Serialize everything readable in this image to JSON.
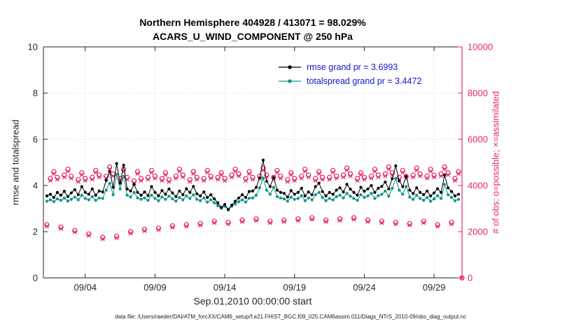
{
  "figure": {
    "title_line1": "Northern Hemisphere 404928 / 413071 = 98.029%",
    "title_line2": "ACARS_U_WIND_COMPONENT @ 250 hPa",
    "xlabel": "Sep.01,2010 00:00:00 start",
    "ylabel_left": "rmse and totalspread",
    "ylabel_right": "# of obs: o=possible; ×=assimilated",
    "footer": "data file: /Users/raeder/DAI/ATM_forcXX/CAM6_setup/f.e21.FHIST_BGC.f09_025.CAM6assim.011/Diags_NTrS_2010-09/obs_diag_output.nc"
  },
  "legend": {
    "text_color": "#1515d0",
    "items": [
      {
        "label": "rmse grand pr = 3.6993",
        "color": "#000000"
      },
      {
        "label": "totalspread grand pr = 3.4472",
        "color": "#0e9488"
      }
    ]
  },
  "chart_data": {
    "type": "line",
    "title": "Northern Hemisphere 404928 / 413071 = 98.029% | ACARS_U_WIND_COMPONENT @ 250 hPa",
    "grid": true,
    "x_axis": {
      "label": "Sep.01,2010 00:00:00 start",
      "range_days": [
        1,
        31
      ],
      "ticks": [
        {
          "day": 4,
          "label": "09/04"
        },
        {
          "day": 9,
          "label": "09/09"
        },
        {
          "day": 14,
          "label": "09/14"
        },
        {
          "day": 19,
          "label": "09/19"
        },
        {
          "day": 24,
          "label": "09/24"
        },
        {
          "day": 29,
          "label": "09/29"
        }
      ]
    },
    "y_axis_left": {
      "label": "rmse and totalspread",
      "range": [
        0,
        10
      ],
      "ticks": [
        0,
        2,
        4,
        6,
        8,
        10
      ],
      "color": "#262626"
    },
    "y_axis_right": {
      "label": "# of obs: o=possible; ×=assimilated",
      "range": [
        0,
        10000
      ],
      "ticks": [
        0,
        2000,
        4000,
        6000,
        8000,
        10000
      ],
      "color": "#e8256d"
    },
    "series": [
      {
        "name": "rmse",
        "color": "#000000",
        "grand_pr": 3.6993,
        "t_start": 1.25,
        "t_step": 0.25,
        "values": [
          3.55,
          3.62,
          3.48,
          3.7,
          3.58,
          3.75,
          3.52,
          3.68,
          3.82,
          3.6,
          3.95,
          3.7,
          3.62,
          3.85,
          3.58,
          3.76,
          3.72,
          4.22,
          4.6,
          3.92,
          4.95,
          4.1,
          4.88,
          3.85,
          3.76,
          4.05,
          3.7,
          3.58,
          3.72,
          3.56,
          3.95,
          3.7,
          3.55,
          3.78,
          3.62,
          3.85,
          3.68,
          3.52,
          3.76,
          3.6,
          3.86,
          3.7,
          3.96,
          3.64,
          3.55,
          3.72,
          3.48,
          3.6,
          3.42,
          3.25,
          3.05,
          3.18,
          2.95,
          3.15,
          3.32,
          3.46,
          3.6,
          3.48,
          3.74,
          3.76,
          3.92,
          4.32,
          5.1,
          4.18,
          3.95,
          4.35,
          3.8,
          3.7,
          3.66,
          3.5,
          3.78,
          3.62,
          3.7,
          3.88,
          3.55,
          3.72,
          3.6,
          3.95,
          4.1,
          3.74,
          3.55,
          3.7,
          3.62,
          3.8,
          3.9,
          3.72,
          4.05,
          3.84,
          3.7,
          3.58,
          3.92,
          3.75,
          3.85,
          4.0,
          3.7,
          3.88,
          3.96,
          4.15,
          3.85,
          4.3,
          4.85,
          4.2,
          3.95,
          4.4,
          3.8,
          3.65,
          3.9,
          3.7,
          3.6,
          3.76,
          3.55,
          3.68,
          3.86,
          3.7,
          4.45,
          3.9,
          3.74,
          3.55,
          3.62
        ]
      },
      {
        "name": "totalspread",
        "color": "#0e9488",
        "grand_pr": 3.4472,
        "t_start": 1.25,
        "t_step": 0.25,
        "values": [
          3.32,
          3.38,
          3.3,
          3.42,
          3.36,
          3.45,
          3.33,
          3.4,
          3.5,
          3.38,
          3.58,
          3.44,
          3.38,
          3.52,
          3.36,
          3.46,
          3.44,
          3.8,
          4.1,
          3.6,
          4.48,
          3.85,
          4.4,
          3.58,
          3.5,
          3.7,
          3.46,
          3.4,
          3.46,
          3.36,
          3.58,
          3.44,
          3.34,
          3.5,
          3.4,
          3.54,
          3.42,
          3.32,
          3.48,
          3.38,
          3.55,
          3.44,
          3.6,
          3.4,
          3.34,
          3.46,
          3.28,
          3.38,
          3.25,
          3.12,
          3.02,
          3.1,
          2.98,
          3.1,
          3.2,
          3.3,
          3.38,
          3.28,
          3.45,
          3.46,
          3.58,
          3.9,
          4.32,
          3.8,
          3.62,
          3.92,
          3.52,
          3.46,
          3.42,
          3.32,
          3.5,
          3.4,
          3.44,
          3.56,
          3.34,
          3.46,
          3.38,
          3.6,
          3.7,
          3.48,
          3.34,
          3.44,
          3.38,
          3.52,
          3.58,
          3.46,
          3.66,
          3.54,
          3.44,
          3.36,
          3.6,
          3.48,
          3.55,
          3.66,
          3.44,
          3.56,
          3.62,
          3.76,
          3.54,
          3.88,
          4.3,
          3.8,
          3.62,
          3.96,
          3.5,
          3.4,
          3.58,
          3.44,
          3.36,
          3.48,
          3.32,
          3.42,
          3.56,
          3.44,
          4.05,
          3.6,
          3.48,
          3.34,
          3.4
        ]
      }
    ],
    "scatter": [
      {
        "name": "obs_possible",
        "marker": "circle",
        "color": "#e8256d",
        "t_start": 1.25,
        "t_step": 0.25,
        "values": [
          2300,
          4300,
          4600,
          4350,
          2200,
          4450,
          4700,
          4400,
          2050,
          4250,
          4550,
          4300,
          1900,
          4350,
          4650,
          4450,
          1750,
          4400,
          4800,
          4500,
          1800,
          4300,
          4700,
          4350,
          2000,
          4200,
          4600,
          4300,
          2100,
          4350,
          4650,
          4400,
          2150,
          4300,
          4550,
          4250,
          2250,
          4400,
          4700,
          4450,
          2300,
          4250,
          4600,
          4350,
          2350,
          4300,
          4650,
          4400,
          2450,
          4350,
          4550,
          4300,
          2400,
          4450,
          4700,
          4500,
          2500,
          4300,
          4600,
          4350,
          2550,
          4400,
          4750,
          4450,
          2450,
          4350,
          4650,
          4400,
          2500,
          4250,
          4550,
          4300,
          2550,
          4400,
          4700,
          4450,
          2600,
          4300,
          4600,
          4350,
          2500,
          4350,
          4650,
          4400,
          2550,
          4450,
          4750,
          4500,
          2600,
          4300,
          4550,
          4350,
          2500,
          4400,
          4700,
          4450,
          2450,
          4500,
          4800,
          4550,
          2400,
          4350,
          4650,
          4400,
          2350,
          4450,
          4750,
          4500,
          2450,
          4400,
          4700,
          4450,
          2300,
          4500,
          4800,
          4550,
          2400,
          4300,
          4600,
          0
        ]
      },
      {
        "name": "obs_assimilated",
        "marker": "x",
        "color": "#e8256d",
        "t_start": 1.25,
        "t_step": 0.25,
        "values": [
          2230,
          4210,
          4510,
          4260,
          2130,
          4360,
          4610,
          4310,
          1980,
          4160,
          4460,
          4210,
          1830,
          4260,
          4560,
          4360,
          1680,
          4310,
          4710,
          4410,
          1730,
          4210,
          4610,
          4260,
          1930,
          4110,
          4510,
          4210,
          2030,
          4260,
          4560,
          4310,
          2080,
          4210,
          4460,
          4160,
          2180,
          4310,
          4610,
          4360,
          2230,
          4160,
          4510,
          4260,
          2280,
          4210,
          4560,
          4310,
          2380,
          4260,
          4460,
          4210,
          2330,
          4360,
          4610,
          4410,
          2430,
          4210,
          4510,
          4260,
          2480,
          4310,
          4660,
          4360,
          2380,
          4260,
          4560,
          4310,
          2430,
          4160,
          4460,
          4210,
          2480,
          4310,
          4610,
          4360,
          2530,
          4210,
          4510,
          4260,
          2430,
          4260,
          4560,
          4310,
          2480,
          4360,
          4660,
          4410,
          2530,
          4210,
          4460,
          4260,
          2430,
          4310,
          4610,
          4360,
          2380,
          4410,
          4710,
          4460,
          2330,
          4260,
          4560,
          4310,
          2280,
          4360,
          4660,
          4410,
          2380,
          4310,
          4610,
          4360,
          2230,
          4410,
          4710,
          4460,
          2330,
          4210,
          4510,
          0
        ]
      }
    ]
  }
}
